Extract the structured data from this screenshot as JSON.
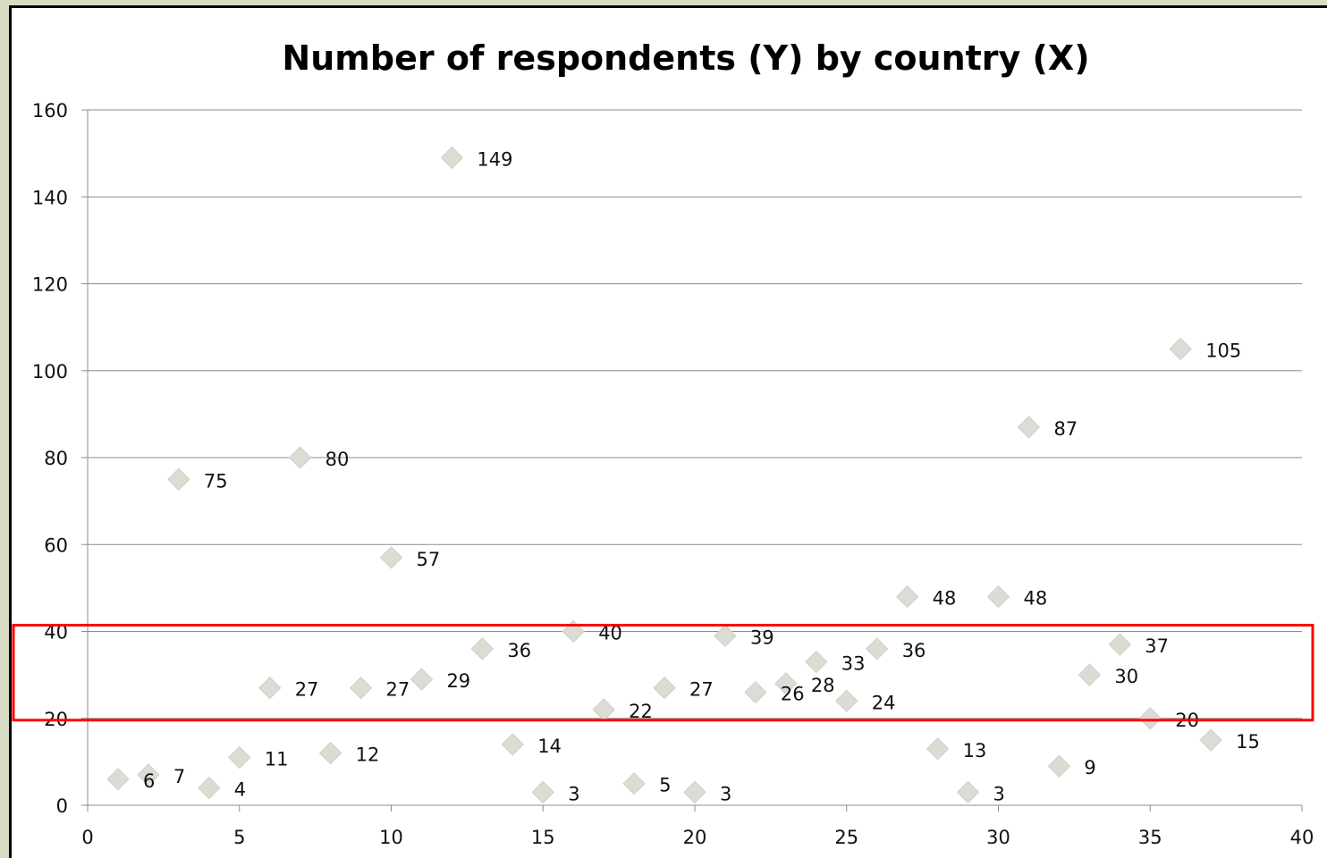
{
  "chart_data": {
    "type": "scatter",
    "title": "Number of respondents (Y) by country (X)",
    "xlabel": "",
    "ylabel": "",
    "xlim": [
      0,
      40
    ],
    "ylim": [
      0,
      160
    ],
    "x_ticks": [
      0,
      5,
      10,
      15,
      20,
      25,
      30,
      35,
      40
    ],
    "y_ticks": [
      0,
      20,
      40,
      60,
      80,
      100,
      120,
      140,
      160
    ],
    "grid": "horizontal",
    "marker": "diamond",
    "marker_color": "#dcdcd4",
    "data_labels": true,
    "highlight": {
      "y_range": [
        20,
        40
      ],
      "color": "#ff0000"
    },
    "x": [
      1,
      2,
      3,
      4,
      5,
      6,
      7,
      8,
      9,
      10,
      11,
      12,
      13,
      14,
      15,
      16,
      17,
      18,
      19,
      20,
      21,
      22,
      23,
      24,
      25,
      26,
      27,
      28,
      29,
      30,
      31,
      32,
      33,
      34,
      35,
      36,
      37
    ],
    "y": [
      6,
      7,
      75,
      4,
      11,
      27,
      80,
      12,
      27,
      57,
      29,
      149,
      36,
      14,
      3,
      40,
      22,
      5,
      27,
      3,
      39,
      26,
      28,
      33,
      24,
      36,
      48,
      13,
      3,
      48,
      87,
      9,
      30,
      37,
      20,
      105,
      15
    ]
  }
}
